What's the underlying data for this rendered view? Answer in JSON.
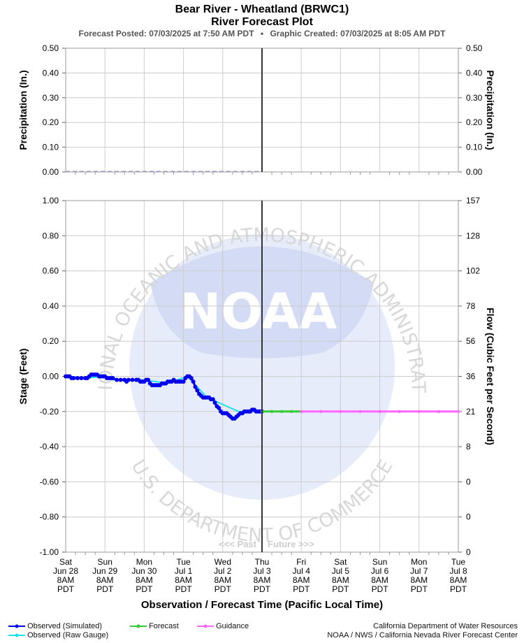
{
  "header": {
    "title": "Bear River - Wheatland (BRWC1)",
    "subtitle": "River Forecast Plot",
    "posted": "Forecast Posted: 07/03/2025 at 7:50 AM PDT",
    "bullet": "•",
    "created": "Graphic Created: 07/03/2025 at 8:05 AM PDT"
  },
  "chart_data": [
    {
      "type": "line",
      "name": "precipitation",
      "ylabel": "Precipitation (In.)",
      "ylabel_right": "Precipitation (In.)",
      "ylim": [
        0,
        0.5
      ],
      "yticks": [
        "0.50",
        "0.40",
        "0.30",
        "0.20",
        "0.10",
        "0.00"
      ],
      "yticks_right": [
        "0.50",
        "0.40",
        "0.30",
        "0.20",
        "0.10",
        "0.00"
      ],
      "series": [
        {
          "label": "Observed precipitation",
          "color": "#9999dd",
          "x_days": [
            0,
            5
          ],
          "values": [
            0,
            0
          ]
        }
      ],
      "grid": true
    },
    {
      "type": "line",
      "name": "stage-flow",
      "ylabel": "Stage (Feet)",
      "ylabel_right": "Flow (Cubic Feet per Second)",
      "ylim": [
        -1.0,
        1.0
      ],
      "yticks": [
        "1.00",
        "0.80",
        "0.60",
        "0.40",
        "0.20",
        "0.00",
        "-0.20",
        "-0.40",
        "-0.60",
        "-0.80",
        "-1.00"
      ],
      "yticks_right": [
        "157",
        "128",
        "102",
        "78",
        "56",
        "36",
        "21",
        "8",
        "0",
        "0",
        "0"
      ],
      "xlabel": "Observation / Forecast Time (Pacific Local Time)",
      "x_ticks": [
        {
          "day": "Sat",
          "date": "Jun 28",
          "time": "8AM",
          "tz": "PDT"
        },
        {
          "day": "Sun",
          "date": "Jun 29",
          "time": "8AM",
          "tz": "PDT"
        },
        {
          "day": "Mon",
          "date": "Jun 30",
          "time": "8AM",
          "tz": "PDT"
        },
        {
          "day": "Tue",
          "date": "Jul 1",
          "time": "8AM",
          "tz": "PDT"
        },
        {
          "day": "Wed",
          "date": "Jul 2",
          "time": "8AM",
          "tz": "PDT"
        },
        {
          "day": "Thu",
          "date": "Jul 3",
          "time": "8AM",
          "tz": "PDT"
        },
        {
          "day": "Fri",
          "date": "Jul 4",
          "time": "8AM",
          "tz": "PDT"
        },
        {
          "day": "Sat",
          "date": "Jul 5",
          "time": "8AM",
          "tz": "PDT"
        },
        {
          "day": "Sun",
          "date": "Jul 6",
          "time": "8AM",
          "tz": "PDT"
        },
        {
          "day": "Mon",
          "date": "Jul 7",
          "time": "8AM",
          "tz": "PDT"
        },
        {
          "day": "Tue",
          "date": "Jul 8",
          "time": "8AM",
          "tz": "PDT"
        }
      ],
      "now_day": 5,
      "past_label": "<<< Past",
      "future_label": "Future >>>",
      "series": [
        {
          "name": "Observed (Raw Gauge)",
          "color": "#22e0ee",
          "points": [
            [
              0.0,
              0.0
            ],
            [
              0.5,
              -0.01
            ],
            [
              1.0,
              0.0
            ],
            [
              1.2,
              -0.02
            ],
            [
              2.0,
              -0.02
            ],
            [
              2.6,
              -0.04
            ],
            [
              3.1,
              0.0
            ],
            [
              3.6,
              -0.12
            ],
            [
              4.4,
              -0.2
            ],
            [
              5.0,
              -0.2
            ]
          ]
        },
        {
          "name": "Observed (Simulated)",
          "color": "#0000ee",
          "points": [
            [
              0.0,
              0.0
            ],
            [
              0.05,
              0.0
            ],
            [
              0.1,
              0.0
            ],
            [
              0.15,
              -0.01
            ],
            [
              0.2,
              -0.01
            ],
            [
              0.3,
              -0.01
            ],
            [
              0.4,
              -0.01
            ],
            [
              0.5,
              -0.01
            ],
            [
              0.55,
              -0.01
            ],
            [
              0.6,
              0.0
            ],
            [
              0.65,
              0.01
            ],
            [
              0.7,
              0.01
            ],
            [
              0.75,
              0.01
            ],
            [
              0.8,
              0.01
            ],
            [
              0.85,
              0.0
            ],
            [
              0.9,
              0.0
            ],
            [
              0.95,
              0.0
            ],
            [
              1.0,
              0.0
            ],
            [
              1.05,
              -0.01
            ],
            [
              1.1,
              -0.01
            ],
            [
              1.15,
              -0.01
            ],
            [
              1.2,
              -0.01
            ],
            [
              1.3,
              -0.02
            ],
            [
              1.4,
              -0.02
            ],
            [
              1.5,
              -0.02
            ],
            [
              1.55,
              -0.03
            ],
            [
              1.6,
              -0.02
            ],
            [
              1.7,
              -0.02
            ],
            [
              1.8,
              -0.02
            ],
            [
              1.85,
              -0.02
            ],
            [
              1.9,
              -0.03
            ],
            [
              1.95,
              -0.03
            ],
            [
              2.0,
              -0.03
            ],
            [
              2.05,
              -0.02
            ],
            [
              2.1,
              -0.02
            ],
            [
              2.15,
              -0.04
            ],
            [
              2.2,
              -0.05
            ],
            [
              2.25,
              -0.05
            ],
            [
              2.3,
              -0.05
            ],
            [
              2.35,
              -0.05
            ],
            [
              2.4,
              -0.05
            ],
            [
              2.45,
              -0.04
            ],
            [
              2.5,
              -0.04
            ],
            [
              2.55,
              -0.04
            ],
            [
              2.6,
              -0.03
            ],
            [
              2.65,
              -0.03
            ],
            [
              2.7,
              -0.03
            ],
            [
              2.75,
              -0.02
            ],
            [
              2.8,
              -0.03
            ],
            [
              2.85,
              -0.03
            ],
            [
              2.9,
              -0.03
            ],
            [
              2.95,
              -0.03
            ],
            [
              3.0,
              -0.03
            ],
            [
              3.05,
              -0.01
            ],
            [
              3.1,
              0.0
            ],
            [
              3.15,
              0.0
            ],
            [
              3.2,
              -0.01
            ],
            [
              3.25,
              -0.03
            ],
            [
              3.3,
              -0.06
            ],
            [
              3.35,
              -0.08
            ],
            [
              3.4,
              -0.1
            ],
            [
              3.45,
              -0.11
            ],
            [
              3.5,
              -0.12
            ],
            [
              3.55,
              -0.12
            ],
            [
              3.6,
              -0.12
            ],
            [
              3.65,
              -0.12
            ],
            [
              3.7,
              -0.13
            ],
            [
              3.75,
              -0.13
            ],
            [
              3.8,
              -0.15
            ],
            [
              3.85,
              -0.17
            ],
            [
              3.9,
              -0.18
            ],
            [
              3.95,
              -0.2
            ],
            [
              4.0,
              -0.21
            ],
            [
              4.05,
              -0.21
            ],
            [
              4.1,
              -0.21
            ],
            [
              4.15,
              -0.22
            ],
            [
              4.2,
              -0.23
            ],
            [
              4.25,
              -0.24
            ],
            [
              4.3,
              -0.24
            ],
            [
              4.35,
              -0.23
            ],
            [
              4.4,
              -0.22
            ],
            [
              4.45,
              -0.21
            ],
            [
              4.5,
              -0.21
            ],
            [
              4.55,
              -0.2
            ],
            [
              4.6,
              -0.2
            ],
            [
              4.65,
              -0.2
            ],
            [
              4.7,
              -0.2
            ],
            [
              4.75,
              -0.19
            ],
            [
              4.8,
              -0.19
            ],
            [
              4.85,
              -0.2
            ],
            [
              4.9,
              -0.2
            ],
            [
              4.95,
              -0.2
            ],
            [
              5.0,
              -0.2
            ]
          ]
        },
        {
          "name": "Forecast",
          "color": "#33cc33",
          "points": [
            [
              5.0,
              -0.2
            ],
            [
              5.25,
              -0.2
            ],
            [
              5.5,
              -0.2
            ],
            [
              5.75,
              -0.2
            ],
            [
              6.0,
              -0.2
            ]
          ]
        },
        {
          "name": "Guidance",
          "color": "#ff66ff",
          "points": [
            [
              6.0,
              -0.2
            ],
            [
              6.5,
              -0.2
            ],
            [
              7.0,
              -0.2
            ],
            [
              7.5,
              -0.2
            ],
            [
              8.0,
              -0.2
            ],
            [
              8.5,
              -0.2
            ],
            [
              9.0,
              -0.2
            ],
            [
              9.5,
              -0.2
            ],
            [
              10.0,
              -0.2
            ]
          ]
        }
      ],
      "grid": true
    }
  ],
  "watermark": {
    "logo_text": "NOAA",
    "ring_top": "NATIONAL OCEANIC AND ATMOSPHERIC ADMINISTRATION",
    "ring_bottom": "U.S. DEPARTMENT OF COMMERCE"
  },
  "legend": {
    "items": [
      {
        "label": "Observed (Simulated)",
        "color": "#0000ee"
      },
      {
        "label": "Forecast",
        "color": "#33cc33"
      },
      {
        "label": "Guidance",
        "color": "#ff66ff"
      },
      {
        "label": "Observed (Raw Gauge)",
        "color": "#22e0ee"
      }
    ]
  },
  "credits": {
    "line1": "California Department of Water Resources",
    "line2": "NOAA / NWS / California Nevada River Forecast Center"
  }
}
